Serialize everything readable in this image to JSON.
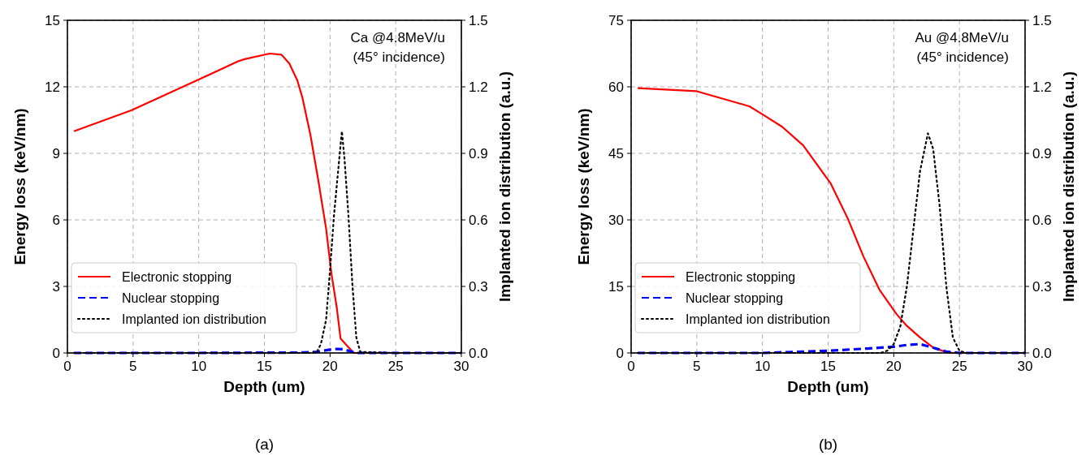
{
  "chart_data": [
    {
      "type": "line",
      "xlabel": "Depth (um)",
      "ylabel": "Energy loss (keV/nm)",
      "y2label": "Implanted ion distribution (a.u.)",
      "xlim": [
        0,
        30
      ],
      "xticks": [
        0,
        5,
        10,
        15,
        20,
        25,
        30
      ],
      "ylim": [
        0,
        15
      ],
      "yticks": [
        0,
        3,
        6,
        9,
        12,
        15
      ],
      "y2lim": [
        0,
        1.5
      ],
      "y2ticks": [
        {
          "value": 0,
          "label": "0.0"
        },
        {
          "value": 0.3,
          "label": "0.3"
        },
        {
          "value": 0.6,
          "label": "0.6"
        },
        {
          "value": 0.9,
          "label": "0.9"
        },
        {
          "value": 1.2,
          "label": "1.2"
        },
        {
          "value": 1.5,
          "label": "1.5"
        }
      ],
      "grid": true,
      "legend": "bottom left",
      "annotations": [
        "Ca @4.8MeV/u\n(45° incidence)",
        "(a)"
      ],
      "series": [
        {
          "name": "Electronic stopping",
          "color": "#ff0000",
          "line_style": "solid",
          "x": [
            0.5,
            4.9,
            9.9,
            13,
            13.5,
            15.4,
            16.3,
            16.9,
            17.5,
            17.9,
            18.5,
            19.1,
            19.7,
            20.1,
            20.5,
            20.8,
            21.8,
            25,
            30
          ],
          "values": [
            10,
            10.95,
            12.3,
            13.15,
            13.25,
            13.5,
            13.45,
            13.05,
            12.3,
            11.5,
            9.85,
            7.8,
            5.6,
            3.6,
            2.1,
            0.65,
            0,
            0,
            0
          ]
        },
        {
          "name": "Nuclear stopping",
          "color": "#0000ff",
          "line_style": "dashed",
          "x": [
            0.5,
            10,
            18,
            19,
            19.5,
            20,
            20.5,
            21,
            21.5,
            22,
            25,
            30
          ],
          "values": [
            0,
            0,
            0.02,
            0.05,
            0.1,
            0.15,
            0.18,
            0.17,
            0.08,
            0,
            0,
            0
          ]
        },
        {
          "name": "Implanted ion distribution",
          "color": "#000000",
          "line_style": "dotted",
          "axis": "y2",
          "x": [
            0.5,
            10,
            18.5,
            19,
            19.3,
            19.7,
            20,
            20.3,
            20.7,
            20.9,
            21.1,
            21.4,
            21.7,
            22,
            22.3,
            25,
            30
          ],
          "values": [
            0,
            0,
            0,
            0.005,
            0.04,
            0.15,
            0.375,
            0.62,
            0.875,
            1,
            0.875,
            0.62,
            0.31,
            0.07,
            0.005,
            0,
            0
          ]
        }
      ]
    },
    {
      "type": "line",
      "xlabel": "Depth (um)",
      "ylabel": "Energy loss (keV/nm)",
      "y2label": "Implanted ion distribution (a.u.)",
      "xlim": [
        0,
        30
      ],
      "xticks": [
        0,
        5,
        10,
        15,
        20,
        25,
        30
      ],
      "ylim": [
        0,
        75
      ],
      "yticks": [
        0,
        15,
        30,
        45,
        60,
        75
      ],
      "y2lim": [
        0,
        1.5
      ],
      "y2ticks": [
        {
          "value": 0,
          "label": "0.0"
        },
        {
          "value": 0.3,
          "label": "0.3"
        },
        {
          "value": 0.6,
          "label": "0.6"
        },
        {
          "value": 0.9,
          "label": "0.9"
        },
        {
          "value": 1.2,
          "label": "1.2"
        },
        {
          "value": 1.5,
          "label": "1.5"
        }
      ],
      "grid": true,
      "legend": "bottom left",
      "annotations": [
        "Au @4.8MeV/u\n(45° incidence)",
        "(b)"
      ],
      "series": [
        {
          "name": "Electronic stopping",
          "color": "#ff0000",
          "line_style": "solid",
          "x": [
            0.5,
            5,
            9,
            10,
            11.5,
            13.1,
            15.2,
            16.5,
            17.7,
            18.9,
            20.2,
            21,
            22,
            23,
            24,
            24.5,
            30
          ],
          "values": [
            59.7,
            59,
            55.6,
            53.8,
            51,
            46.8,
            38.2,
            30.3,
            21.7,
            14.3,
            8.8,
            6.1,
            3.5,
            1.2,
            0.2,
            0,
            0
          ]
        },
        {
          "name": "Nuclear stopping",
          "color": "#0000ff",
          "line_style": "dashed",
          "x": [
            0.5,
            10,
            15,
            18,
            20,
            21,
            22,
            23,
            24,
            25,
            30
          ],
          "values": [
            0,
            0,
            0.5,
            1,
            1.4,
            1.8,
            2,
            1.2,
            0.3,
            0,
            0
          ]
        },
        {
          "name": "Implanted ion distribution",
          "color": "#000000",
          "line_style": "dotted",
          "axis": "y2",
          "x": [
            0.5,
            19,
            19.5,
            20,
            20.5,
            21,
            21.5,
            22,
            22.6,
            23,
            23.5,
            24,
            24.5,
            25,
            25.5,
            30
          ],
          "values": [
            0,
            0,
            0.01,
            0.04,
            0.12,
            0.3,
            0.56,
            0.82,
            0.99,
            0.92,
            0.66,
            0.3,
            0.07,
            0.01,
            0,
            0
          ]
        }
      ]
    }
  ]
}
